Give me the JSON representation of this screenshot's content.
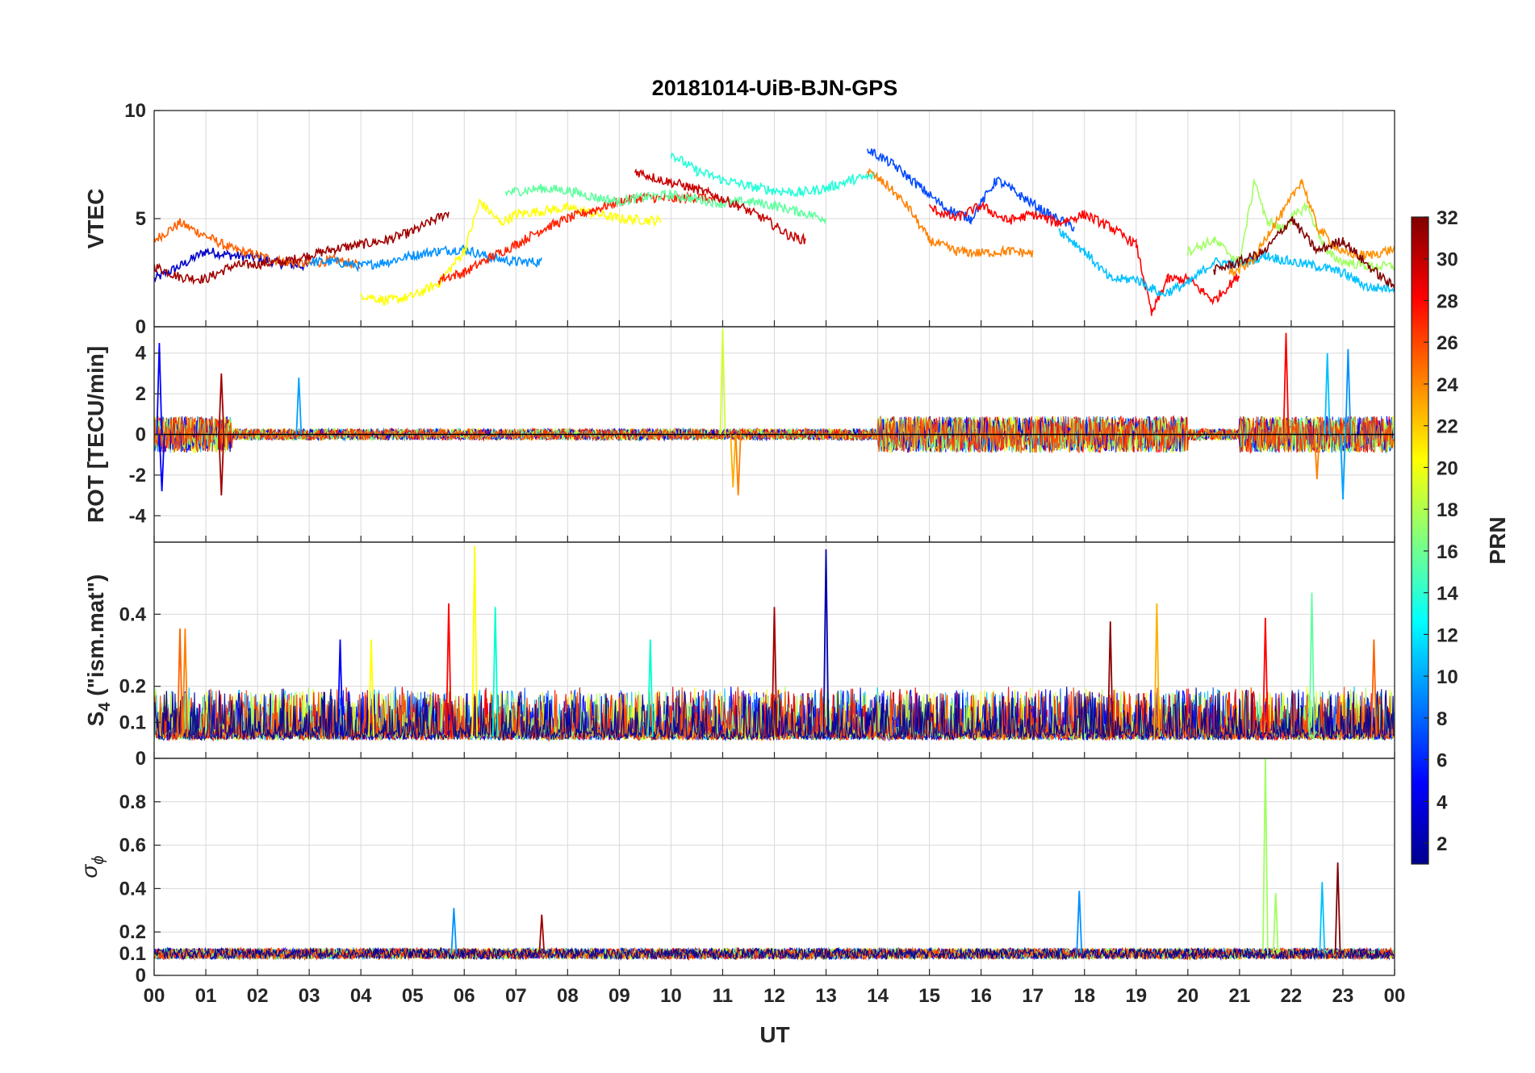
{
  "title": "20181014-UiB-BJN-GPS",
  "x_axis": {
    "label": "UT",
    "tick_labels": [
      "00",
      "01",
      "02",
      "03",
      "04",
      "05",
      "06",
      "07",
      "08",
      "09",
      "10",
      "11",
      "12",
      "13",
      "14",
      "15",
      "16",
      "17",
      "18",
      "19",
      "20",
      "21",
      "22",
      "23",
      "00"
    ]
  },
  "panels": [
    {
      "name": "vtec",
      "ylabel": "VTEC",
      "ylim": [
        0,
        10
      ],
      "yticks": [
        0,
        5,
        10
      ]
    },
    {
      "name": "rot",
      "ylabel": "ROT [TECU/min]",
      "ylim": [
        -5.3,
        5.3
      ],
      "yticks": [
        -4,
        -2,
        0,
        2,
        4
      ]
    },
    {
      "name": "s4",
      "ylabel_main": "S",
      "ylabel_sub": "4",
      "ylabel_rest": " (\"ism.mat\")",
      "ylim": [
        0,
        0.6
      ],
      "yticks": [
        0,
        0.1,
        0.2,
        0.4
      ]
    },
    {
      "name": "sigma_phi",
      "ylabel_main": "σ",
      "ylabel_sub": "ϕ",
      "ylim": [
        0,
        1
      ],
      "yticks": [
        0,
        0.1,
        0.2,
        0.4,
        0.6,
        0.8
      ]
    }
  ],
  "colorbar": {
    "label": "PRN",
    "range": [
      1,
      32
    ],
    "ticks": [
      2,
      4,
      6,
      8,
      10,
      12,
      14,
      16,
      18,
      20,
      22,
      24,
      26,
      28,
      30,
      32
    ],
    "colormap": "jet"
  },
  "chart_data": [
    {
      "type": "line",
      "title": "20181014-UiB-BJN-GPS",
      "ylabel": "VTEC",
      "xlabel": "UT",
      "xlim": [
        0,
        24
      ],
      "ylim": [
        0,
        10
      ],
      "grid": true,
      "series": [
        {
          "prn": 3,
          "color": "#0000c8",
          "x": [
            0,
            0.5,
            1,
            1.5,
            2,
            2.5,
            3
          ],
          "y": [
            2.2,
            2.8,
            3.5,
            3.3,
            3.2,
            2.9,
            2.8
          ]
        },
        {
          "prn": 25,
          "color": "#ff6000",
          "x": [
            0,
            0.5,
            1,
            1.5,
            2,
            2.5,
            3,
            3.5,
            4
          ],
          "y": [
            4.0,
            4.8,
            4.2,
            3.6,
            3.3,
            3.0,
            2.9,
            3.1,
            2.8
          ]
        },
        {
          "prn": 31,
          "color": "#a00000",
          "x": [
            0,
            0.5,
            1,
            1.5,
            2,
            2.5,
            3,
            3.5,
            4,
            4.5,
            5,
            5.7
          ],
          "y": [
            2.8,
            2.3,
            2.2,
            2.8,
            2.9,
            3.0,
            3.3,
            3.6,
            3.8,
            4.0,
            4.4,
            5.3
          ]
        },
        {
          "prn": 10,
          "color": "#0090ff",
          "x": [
            3,
            3.5,
            4,
            4.5,
            5,
            5.5,
            6,
            6.5,
            7,
            7.5
          ],
          "y": [
            3.0,
            3.0,
            2.8,
            3.0,
            3.3,
            3.5,
            3.6,
            3.2,
            3.0,
            3.0
          ]
        },
        {
          "prn": 20,
          "color": "#ffff00",
          "x": [
            4,
            4.5,
            5,
            5.5,
            6,
            6.3,
            6.7,
            7,
            8,
            9,
            9.8
          ],
          "y": [
            1.5,
            1.2,
            1.4,
            2.0,
            3.5,
            5.8,
            4.8,
            5.2,
            5.5,
            5.0,
            4.9
          ]
        },
        {
          "prn": 28,
          "color": "#ff2000",
          "x": [
            5.5,
            6,
            6.5,
            7,
            7.5,
            8,
            8.5,
            9,
            9.5,
            10,
            10.5,
            11
          ],
          "y": [
            2.2,
            2.5,
            3.2,
            3.8,
            4.5,
            5.0,
            5.4,
            5.8,
            6.0,
            5.9,
            6.0,
            5.8
          ]
        },
        {
          "prn": 15,
          "color": "#60ffa0",
          "x": [
            6.8,
            7.5,
            8,
            8.5,
            9,
            9.5,
            10,
            10.5,
            11,
            11.5,
            12,
            12.5,
            13
          ],
          "y": [
            6.2,
            6.4,
            6.3,
            6.0,
            5.8,
            6.0,
            6.1,
            5.9,
            5.7,
            5.8,
            5.6,
            5.3,
            5.0
          ]
        },
        {
          "prn": 13,
          "color": "#20ffd8",
          "x": [
            10,
            10.5,
            11,
            11.5,
            12,
            12.5,
            13,
            13.5,
            14
          ],
          "y": [
            8.0,
            7.2,
            6.8,
            6.5,
            6.3,
            6.2,
            6.4,
            6.8,
            7.0
          ]
        },
        {
          "prn": 30,
          "color": "#c80000",
          "x": [
            9.3,
            9.8,
            10.3,
            10.8,
            11.3,
            11.8,
            12.3,
            12.6
          ],
          "y": [
            7.2,
            6.8,
            6.5,
            6.1,
            5.6,
            5.0,
            4.2,
            4.0
          ]
        },
        {
          "prn": 6,
          "color": "#0048ff",
          "x": [
            13.8,
            14.3,
            14.8,
            15.3,
            15.8,
            16.3,
            16.8,
            17.3,
            17.8
          ],
          "y": [
            8.2,
            7.5,
            6.5,
            5.5,
            5.0,
            6.8,
            6.0,
            5.2,
            4.6
          ]
        },
        {
          "prn": 24,
          "color": "#ff8000",
          "x": [
            13.8,
            14.2,
            14.6,
            15,
            15.5,
            16,
            16.5,
            17
          ],
          "y": [
            7.2,
            6.5,
            5.5,
            4.0,
            3.5,
            3.4,
            3.5,
            3.4
          ]
        },
        {
          "prn": 27,
          "color": "#ff0000",
          "x": [
            15,
            15.5,
            16,
            16.5,
            17,
            17.5,
            18,
            18.5,
            19,
            19.3,
            19.6,
            20,
            20.5,
            21
          ],
          "y": [
            5.5,
            5.0,
            5.6,
            4.9,
            5.2,
            4.8,
            5.2,
            4.6,
            3.8,
            0.6,
            2.2,
            2.2,
            1.2,
            2.4
          ]
        },
        {
          "prn": 11,
          "color": "#00c0ff",
          "x": [
            17.5,
            18,
            18.5,
            19,
            19.5,
            20,
            20.5,
            21,
            21.5,
            22,
            22.5,
            23,
            23.5,
            24
          ],
          "y": [
            4.5,
            3.5,
            2.2,
            2.2,
            1.5,
            2.0,
            3.0,
            2.9,
            3.3,
            3.0,
            2.8,
            2.5,
            1.8,
            1.8
          ]
        },
        {
          "prn": 17,
          "color": "#a0ff60",
          "x": [
            20,
            20.5,
            21,
            21.3,
            21.5,
            21.8,
            22,
            22.3,
            22.7,
            23,
            23.5,
            24
          ],
          "y": [
            3.5,
            4.0,
            3.0,
            6.8,
            5.0,
            4.5,
            5.0,
            5.6,
            3.4,
            3.0,
            2.8,
            2.8
          ]
        },
        {
          "prn": 23,
          "color": "#ff9000",
          "x": [
            20.8,
            21,
            21.3,
            21.6,
            21.9,
            22.2,
            22.5,
            23,
            23.5,
            24
          ],
          "y": [
            2.5,
            2.6,
            3.2,
            4.5,
            5.5,
            6.8,
            4.6,
            3.4,
            3.3,
            3.6
          ]
        },
        {
          "prn": 32,
          "color": "#800000",
          "x": [
            20.5,
            21,
            21.5,
            22,
            22.5,
            23,
            23.5,
            24
          ],
          "y": [
            2.6,
            3.0,
            3.5,
            5.0,
            3.5,
            4.0,
            2.8,
            1.8
          ]
        }
      ]
    },
    {
      "type": "line",
      "ylabel": "ROT [TECU/min]",
      "xlabel": "UT",
      "xlim": [
        0,
        24
      ],
      "ylim": [
        -5.3,
        5.3
      ],
      "grid": true,
      "baseline": 0,
      "spikes": [
        {
          "x": 0.1,
          "y": 4.5,
          "color": "#0000ff"
        },
        {
          "x": 0.15,
          "y": -2.8,
          "color": "#0000ff"
        },
        {
          "x": 1.3,
          "y": 3.0,
          "color": "#a00000"
        },
        {
          "x": 1.3,
          "y": -3.0,
          "color": "#a00000"
        },
        {
          "x": 2.8,
          "y": 2.8,
          "color": "#00a0ff"
        },
        {
          "x": 11.0,
          "y": 5.2,
          "color": "#d0ff30"
        },
        {
          "x": 11.2,
          "y": -2.6,
          "color": "#ffb000"
        },
        {
          "x": 11.3,
          "y": -3.0,
          "color": "#ff8000"
        },
        {
          "x": 21.9,
          "y": 5.0,
          "color": "#ff0000"
        },
        {
          "x": 22.7,
          "y": 4.0,
          "color": "#00c0ff"
        },
        {
          "x": 23.1,
          "y": 4.2,
          "color": "#0090ff"
        },
        {
          "x": 23.0,
          "y": -3.2,
          "color": "#00a0ff"
        },
        {
          "x": 22.5,
          "y": -2.2,
          "color": "#ff8000"
        }
      ]
    },
    {
      "type": "line",
      "ylabel": "S4 (\"ism.mat\")",
      "xlabel": "UT",
      "xlim": [
        0,
        24
      ],
      "ylim": [
        0,
        0.6
      ],
      "grid": true,
      "baseline": 0.06,
      "peaks": [
        {
          "x": 0.5,
          "y": 0.36,
          "color": "#ff6000"
        },
        {
          "x": 0.6,
          "y": 0.36,
          "color": "#ff8000"
        },
        {
          "x": 3.6,
          "y": 0.33,
          "color": "#0000ff"
        },
        {
          "x": 4.2,
          "y": 0.33,
          "color": "#ffff00"
        },
        {
          "x": 5.7,
          "y": 0.43,
          "color": "#ff0000"
        },
        {
          "x": 6.2,
          "y": 0.59,
          "color": "#ffff00"
        },
        {
          "x": 6.6,
          "y": 0.42,
          "color": "#00ffd0"
        },
        {
          "x": 9.6,
          "y": 0.33,
          "color": "#00ffd0"
        },
        {
          "x": 12.0,
          "y": 0.42,
          "color": "#a00000"
        },
        {
          "x": 13.0,
          "y": 0.58,
          "color": "#0000b0"
        },
        {
          "x": 18.5,
          "y": 0.38,
          "color": "#8b0000"
        },
        {
          "x": 19.4,
          "y": 0.43,
          "color": "#ffb000"
        },
        {
          "x": 21.5,
          "y": 0.39,
          "color": "#ff0000"
        },
        {
          "x": 22.4,
          "y": 0.46,
          "color": "#60ffa0"
        },
        {
          "x": 23.6,
          "y": 0.33,
          "color": "#ff6000"
        }
      ]
    },
    {
      "type": "line",
      "ylabel": "σφ",
      "xlabel": "UT",
      "xlim": [
        0,
        24
      ],
      "ylim": [
        0,
        1
      ],
      "grid": true,
      "baseline": 0.1,
      "peaks": [
        {
          "x": 5.8,
          "y": 0.31,
          "color": "#0090ff"
        },
        {
          "x": 7.5,
          "y": 0.28,
          "color": "#a00000"
        },
        {
          "x": 17.9,
          "y": 0.39,
          "color": "#0090ff"
        },
        {
          "x": 21.5,
          "y": 1.0,
          "color": "#a0ff60"
        },
        {
          "x": 21.7,
          "y": 0.38,
          "color": "#a0ff60"
        },
        {
          "x": 22.6,
          "y": 0.43,
          "color": "#00c0ff"
        },
        {
          "x": 22.9,
          "y": 0.52,
          "color": "#800000"
        }
      ]
    }
  ]
}
